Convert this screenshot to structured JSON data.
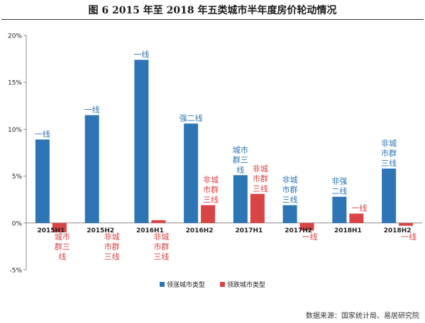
{
  "title": "图 6   2015 年至 2018 年五类城市半年度房价轮动情况",
  "source": "数据来源：国家统计局、易居研究院",
  "colors": {
    "rising": "#2e75b6",
    "falling": "#d94545",
    "rising_label": "#2e75b6",
    "falling_label": "#d94545"
  },
  "chart_data": {
    "type": "bar",
    "categories": [
      "2015H1",
      "2015H2",
      "2016H1",
      "2016H2",
      "2017H1",
      "2017H2",
      "2018H1",
      "2018H2"
    ],
    "series": [
      {
        "name": "领涨城市类型",
        "values": [
          8.9,
          11.5,
          17.4,
          10.6,
          5.1,
          1.9,
          2.8,
          5.8
        ],
        "labels": [
          "一线",
          "一线",
          "一线",
          "强二线",
          "城市群三线",
          "非城市群三线",
          "非强二线",
          "非城市群三线"
        ]
      },
      {
        "name": "领跌城市类型",
        "values": [
          -1.0,
          0.0,
          0.3,
          1.9,
          3.1,
          -0.8,
          1.0,
          -0.3
        ],
        "labels": [
          "城市群三线",
          "非城市群三线",
          "非城市群三线",
          "非城市群三线",
          "非城市群三线",
          "一线",
          "一线",
          "一线"
        ]
      }
    ],
    "y_ticks": [
      "-5%",
      "0%",
      "5%",
      "10%",
      "15%",
      "20%"
    ],
    "ylim": [
      -5,
      20
    ],
    "y_tick_step": 5,
    "grid": false,
    "legend_position": "bottom"
  }
}
